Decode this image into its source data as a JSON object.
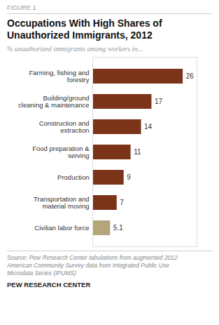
{
  "chart_data": {
    "type": "bar",
    "orientation": "horizontal",
    "title": "Occupations With High Shares of\nUnauthorized Immigrants, 2012",
    "subtitle": "% unauthorized immigrants among workers in...",
    "annotations": [
      "FIGURE 1",
      "Source: Pew Research Center tabulations from augmented 2012\nAmerican Community Survey data from Integrated Public Use\nMicrodata Series (IPUMS)",
      "PEW RESEARCH CENTER"
    ],
    "categories": [
      "Farming, fishing and\nforestry",
      "Building/ground\ncleaning & maintenance",
      "Construction and\nextraction",
      "Food preparation &\nserving",
      "Production",
      "Transportation and\nmaterial moving",
      "Civilian labor force"
    ],
    "values": [
      26,
      17,
      14,
      11,
      9,
      7,
      5.1
    ],
    "colors": [
      "#7B3319",
      "#7B3319",
      "#7B3319",
      "#7B3319",
      "#7B3319",
      "#7B3319",
      "#B5A57A"
    ],
    "xlim": [
      0,
      30
    ],
    "data_labels": true,
    "tick_labels": "y",
    "grid": false
  }
}
